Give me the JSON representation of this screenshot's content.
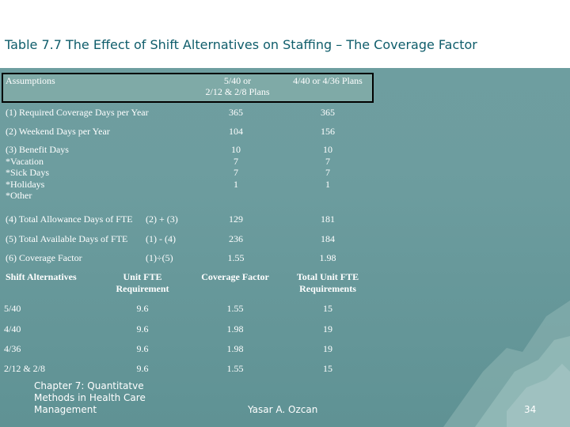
{
  "slide": {
    "title": "Table 7.7 The Effect of Shift Alternatives on Staffing – The Coverage Factor",
    "footer_left_lines": [
      "Chapter 7: Quantitatve",
      "Methods in Health Care",
      "Management"
    ],
    "footer_center": "Yasar A. Ozcan",
    "page_number": "34"
  },
  "assumptions_table": {
    "headers": [
      "Assumptions",
      "5/40 or",
      "2/12 & 2/8 Plans",
      "4/40 or 4/36 Plans"
    ],
    "rows": [
      {
        "label": "(1)  Required Coverage Days per Year",
        "formula": "",
        "plan_a": "365",
        "plan_b": "365"
      },
      {
        "label": "(2)  Weekend Days per Year",
        "formula": "",
        "plan_a": "104",
        "plan_b": "156"
      },
      {
        "label": "(4)  Total Allowance Days of FTE",
        "formula": "(2) + (3)",
        "plan_a": "129",
        "plan_b": "181"
      },
      {
        "label": "(5)  Total Available Days of FTE",
        "formula": "(1) - (4)",
        "plan_a": "236",
        "plan_b": "184"
      },
      {
        "label": "(6)  Coverage Factor",
        "formula": "(1)÷(5)",
        "plan_a": "1.55",
        "plan_b": "1.98"
      }
    ],
    "benefit_days": {
      "lines": [
        "(3)  Benefit Days",
        "*Vacation",
        "*Sick Days",
        "*Holidays",
        "*Other"
      ],
      "plan_a": [
        "10",
        "7",
        "7",
        "1"
      ],
      "plan_b": [
        "10",
        "7",
        "7",
        "1"
      ]
    }
  },
  "shift_table": {
    "headers": [
      "Shift Alternatives",
      "Unit FTE",
      "Requirement",
      "Coverage Factor",
      "Total Unit FTE",
      "Requirements"
    ],
    "rows": [
      {
        "shift": "5/40",
        "fte": "9.6",
        "factor": "1.55",
        "total": "15"
      },
      {
        "shift": "4/40",
        "fte": "9.6",
        "factor": "1.98",
        "total": "19"
      },
      {
        "shift": "4/36",
        "fte": "9.6",
        "factor": "1.98",
        "total": "19"
      },
      {
        "shift": "2/12 & 2/8",
        "fte": "9.6",
        "factor": "1.55",
        "total": "15"
      }
    ]
  },
  "colors": {
    "title": "#0f5d6b",
    "background": "#6f9ea0",
    "header_fill": "#7faaa7"
  }
}
